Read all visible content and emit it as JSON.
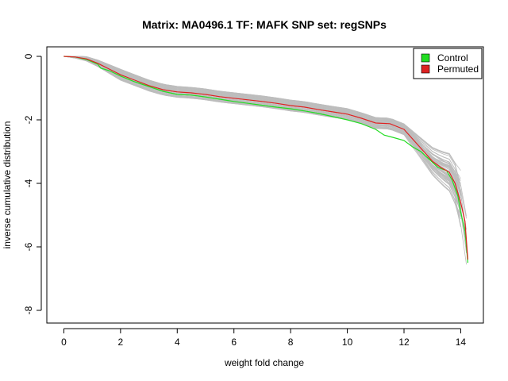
{
  "chart_data": {
    "type": "line",
    "title": "Matrix: MA0496.1 TF: MAFK SNP set: regSNPs",
    "xlabel": "weight fold change",
    "ylabel": "inverse cumulative distribution",
    "xlim": [
      -0.6,
      14.8
    ],
    "ylim": [
      -8.4,
      0.3
    ],
    "x_ticks": [
      0,
      2,
      4,
      6,
      8,
      10,
      12,
      14
    ],
    "y_ticks": [
      0,
      -2,
      -4,
      -6,
      -8
    ],
    "legend_position": "top-right",
    "legend": [
      {
        "label": "Control",
        "color": "#22dd22"
      },
      {
        "label": "Permuted",
        "color": "#dd2222"
      }
    ],
    "background_color": "#bdbdbd",
    "background_lines_count": 60,
    "series": [
      {
        "name": "Control",
        "color": "#22dd22",
        "points": [
          [
            0,
            0
          ],
          [
            0.4,
            -0.02
          ],
          [
            0.8,
            -0.1
          ],
          [
            1.2,
            -0.25
          ],
          [
            1.3,
            -0.37
          ],
          [
            1.6,
            -0.45
          ],
          [
            2.0,
            -0.62
          ],
          [
            2.5,
            -0.8
          ],
          [
            3.0,
            -0.95
          ],
          [
            3.5,
            -1.1
          ],
          [
            4.0,
            -1.2
          ],
          [
            4.5,
            -1.22
          ],
          [
            5.0,
            -1.28
          ],
          [
            5.5,
            -1.35
          ],
          [
            6.0,
            -1.42
          ],
          [
            6.5,
            -1.48
          ],
          [
            7.0,
            -1.54
          ],
          [
            7.5,
            -1.6
          ],
          [
            8.0,
            -1.65
          ],
          [
            8.5,
            -1.72
          ],
          [
            9.0,
            -1.8
          ],
          [
            9.5,
            -1.9
          ],
          [
            10.0,
            -2.0
          ],
          [
            10.5,
            -2.12
          ],
          [
            11.0,
            -2.3
          ],
          [
            11.3,
            -2.48
          ],
          [
            11.6,
            -2.55
          ],
          [
            12.0,
            -2.65
          ],
          [
            12.3,
            -2.85
          ],
          [
            12.6,
            -3.0
          ],
          [
            12.9,
            -3.25
          ],
          [
            13.2,
            -3.5
          ],
          [
            13.5,
            -3.6
          ],
          [
            13.7,
            -3.9
          ],
          [
            13.9,
            -4.4
          ],
          [
            14.0,
            -4.9
          ],
          [
            14.15,
            -5.5
          ],
          [
            14.25,
            -6.5
          ]
        ]
      },
      {
        "name": "Permuted",
        "color": "#dd2222",
        "points": [
          [
            0,
            0
          ],
          [
            0.4,
            -0.02
          ],
          [
            0.8,
            -0.08
          ],
          [
            1.2,
            -0.22
          ],
          [
            1.6,
            -0.4
          ],
          [
            2.0,
            -0.58
          ],
          [
            2.5,
            -0.75
          ],
          [
            3.0,
            -0.92
          ],
          [
            3.5,
            -1.05
          ],
          [
            4.0,
            -1.12
          ],
          [
            4.5,
            -1.15
          ],
          [
            5.0,
            -1.2
          ],
          [
            5.5,
            -1.27
          ],
          [
            6.0,
            -1.32
          ],
          [
            6.5,
            -1.37
          ],
          [
            7.0,
            -1.42
          ],
          [
            7.5,
            -1.48
          ],
          [
            8.0,
            -1.55
          ],
          [
            8.5,
            -1.6
          ],
          [
            9.0,
            -1.68
          ],
          [
            9.5,
            -1.75
          ],
          [
            10.0,
            -1.82
          ],
          [
            10.5,
            -1.95
          ],
          [
            11.0,
            -2.1
          ],
          [
            11.5,
            -2.12
          ],
          [
            12.0,
            -2.3
          ],
          [
            12.4,
            -2.7
          ],
          [
            12.7,
            -3.0
          ],
          [
            13.0,
            -3.3
          ],
          [
            13.3,
            -3.5
          ],
          [
            13.6,
            -3.65
          ],
          [
            13.8,
            -4.0
          ],
          [
            14.0,
            -4.6
          ],
          [
            14.15,
            -5.2
          ],
          [
            14.25,
            -6.4
          ]
        ]
      }
    ]
  }
}
